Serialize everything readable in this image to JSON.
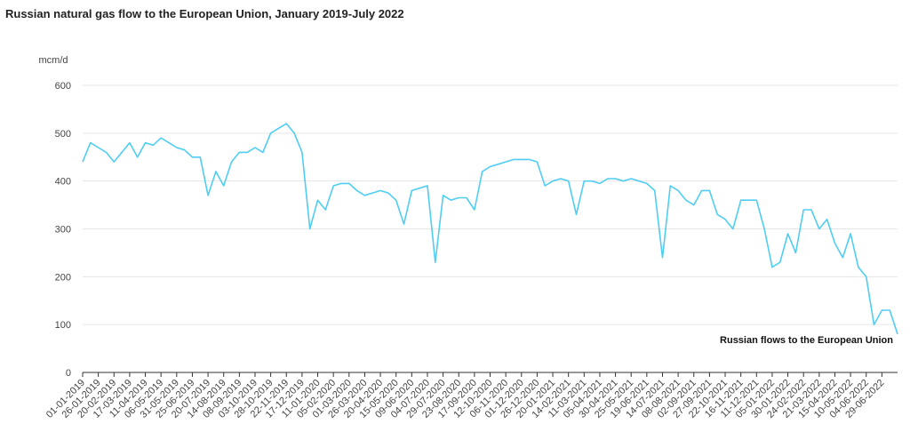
{
  "chart_data": {
    "type": "line",
    "title": "Russian natural gas flow to the European Union, January 2019-July 2022",
    "y_label": "mcm/d",
    "ylim": [
      0,
      600
    ],
    "yticks": [
      0,
      100,
      200,
      300,
      400,
      500,
      600
    ],
    "grid": true,
    "categories": [
      "01-01-2019",
      null,
      "26-01-2019",
      null,
      "20-02-2019",
      null,
      "17-03-2019",
      null,
      "11-04-2019",
      null,
      "06-05-2019",
      null,
      "31-05-2019",
      null,
      "25-06-2019",
      null,
      "20-07-2019",
      null,
      "14-08-2019",
      null,
      "08-09-2019",
      null,
      "03-10-2019",
      null,
      "28-10-2019",
      null,
      "22-11-2019",
      null,
      "17-12-2019",
      null,
      "11-01-2020",
      null,
      "05-02-2020",
      null,
      "01-03-2020",
      null,
      "26-03-2020",
      null,
      "20-04-2020",
      null,
      "15-05-2020",
      null,
      "09-06-2020",
      null,
      "04-07-2020",
      null,
      "29-07-2020",
      null,
      "23-08-2020",
      null,
      "17-09-2020",
      null,
      "12-10-2020",
      null,
      "06-11-2020",
      null,
      "01-12-2020",
      null,
      "26-12-2020",
      null,
      "20-01-2021",
      null,
      "14-02-2021",
      null,
      "11-03-2021",
      null,
      "05-04-2021",
      null,
      "30-04-2021",
      null,
      "25-05-2021",
      null,
      "19-06-2021",
      null,
      "14-07-2021",
      null,
      "08-08-2021",
      null,
      "02-09-2021",
      null,
      "27-09-2021",
      null,
      "22-10-2021",
      null,
      "16-11-2021",
      null,
      "11-12-2021",
      null,
      "05-01-2022",
      null,
      "30-01-2022",
      null,
      "24-02-2022",
      null,
      "21-03-2022",
      null,
      "15-04-2022",
      null,
      "10-05-2022",
      null,
      "04-06-2022",
      null,
      "29-06-2022",
      null,
      null
    ],
    "series": [
      {
        "name": "Russian flows to the European Union",
        "color": "#4fcdf2",
        "values": [
          440,
          480,
          470,
          460,
          440,
          460,
          480,
          450,
          480,
          475,
          490,
          480,
          470,
          465,
          450,
          450,
          370,
          420,
          390,
          440,
          460,
          460,
          470,
          460,
          500,
          510,
          520,
          500,
          460,
          300,
          360,
          340,
          390,
          395,
          395,
          380,
          370,
          375,
          380,
          375,
          360,
          310,
          380,
          385,
          390,
          230,
          370,
          360,
          365,
          365,
          340,
          420,
          430,
          435,
          440,
          445,
          445,
          445,
          440,
          390,
          400,
          405,
          400,
          330,
          400,
          400,
          395,
          405,
          405,
          400,
          405,
          400,
          395,
          380,
          240,
          390,
          380,
          360,
          350,
          380,
          380,
          330,
          320,
          300,
          360,
          360,
          360,
          300,
          220,
          230,
          290,
          250,
          340,
          340,
          300,
          320,
          270,
          240,
          290,
          220,
          200,
          100,
          130,
          130,
          80
        ]
      }
    ]
  }
}
